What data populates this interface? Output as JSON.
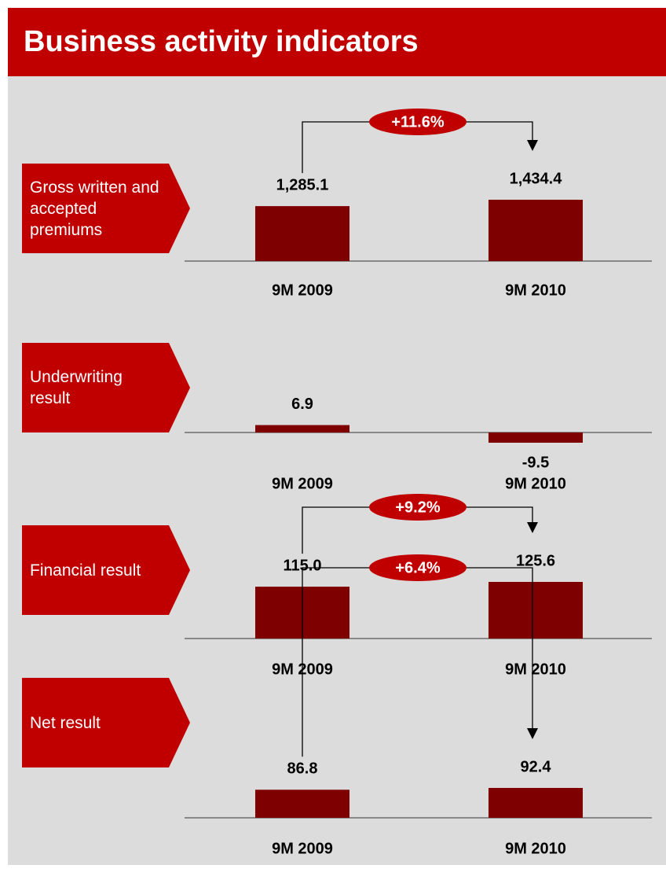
{
  "title": "Business activity indicators",
  "chart_data": [
    {
      "type": "bar",
      "title": "Gross written and accepted premiums",
      "categories": [
        "9M 2009",
        "9M 2010"
      ],
      "values": [
        1285.1,
        1434.4
      ],
      "value_labels": [
        "1,285.1",
        "1,434.4"
      ],
      "annotation": "+11.6%",
      "color": "#7f0000"
    },
    {
      "type": "bar",
      "title": "Underwriting result",
      "categories": [
        "9M 2009",
        "9M 2010"
      ],
      "values": [
        6.9,
        -9.5
      ],
      "value_labels": [
        "6.9",
        "-9.5"
      ],
      "color": "#7f0000"
    },
    {
      "type": "bar",
      "title": "Financial result",
      "categories": [
        "9M 2009",
        "9M 2010"
      ],
      "values": [
        115.0,
        125.6
      ],
      "value_labels": [
        "115.0",
        "125.6"
      ],
      "annotation": "+9.2%",
      "color": "#7f0000"
    },
    {
      "type": "bar",
      "title": "Net result",
      "categories": [
        "9M 2009",
        "9M 2010"
      ],
      "values": [
        86.8,
        92.4
      ],
      "value_labels": [
        "86.8",
        "92.4"
      ],
      "annotation": "+6.4%",
      "color": "#7f0000"
    }
  ]
}
